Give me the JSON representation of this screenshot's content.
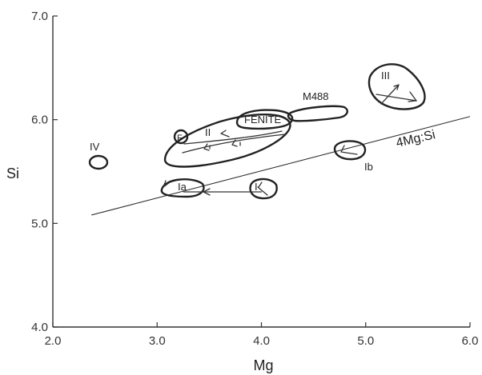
{
  "chart_data": {
    "type": "scatter",
    "title": "",
    "xlabel": "Mg",
    "ylabel": "Si",
    "xlim": [
      2.0,
      6.0
    ],
    "ylim": [
      4.0,
      7.0
    ],
    "x_ticks": [
      "2.0",
      "3.0",
      "4.0",
      "5.0",
      "6.0"
    ],
    "y_ticks": [
      "4.0",
      "5.0",
      "6.0",
      "7.0"
    ],
    "grid": false,
    "reference_line": {
      "label": "4Mg:Si",
      "points": [
        [
          2.37,
          5.08
        ],
        [
          6.0,
          6.03
        ]
      ]
    },
    "fields": [
      {
        "label": "IV",
        "center": [
          2.45,
          5.57
        ]
      },
      {
        "label": "Ia",
        "center": [
          3.2,
          5.35
        ]
      },
      {
        "label": "I",
        "center": [
          4.0,
          5.33
        ]
      },
      {
        "label": "II",
        "center": [
          3.5,
          5.75
        ]
      },
      {
        "label": "F",
        "center": [
          3.15,
          5.75
        ]
      },
      {
        "label": "FENITE",
        "center": [
          4.05,
          6.0
        ]
      },
      {
        "label": "M488",
        "center": [
          4.55,
          6.05
        ]
      },
      {
        "label": "Ib",
        "center": [
          4.85,
          5.68
        ]
      },
      {
        "label": "III",
        "center": [
          5.35,
          6.25
        ]
      }
    ],
    "trends": [
      {
        "field": "Ia",
        "from": [
          4.0,
          5.3
        ],
        "to": [
          3.1,
          5.3
        ]
      },
      {
        "field": "II",
        "from": [
          3.1,
          5.65
        ],
        "to": [
          4.1,
          5.85
        ]
      },
      {
        "field": "III",
        "from": [
          5.2,
          6.2
        ],
        "to": [
          5.5,
          6.35
        ]
      }
    ]
  }
}
